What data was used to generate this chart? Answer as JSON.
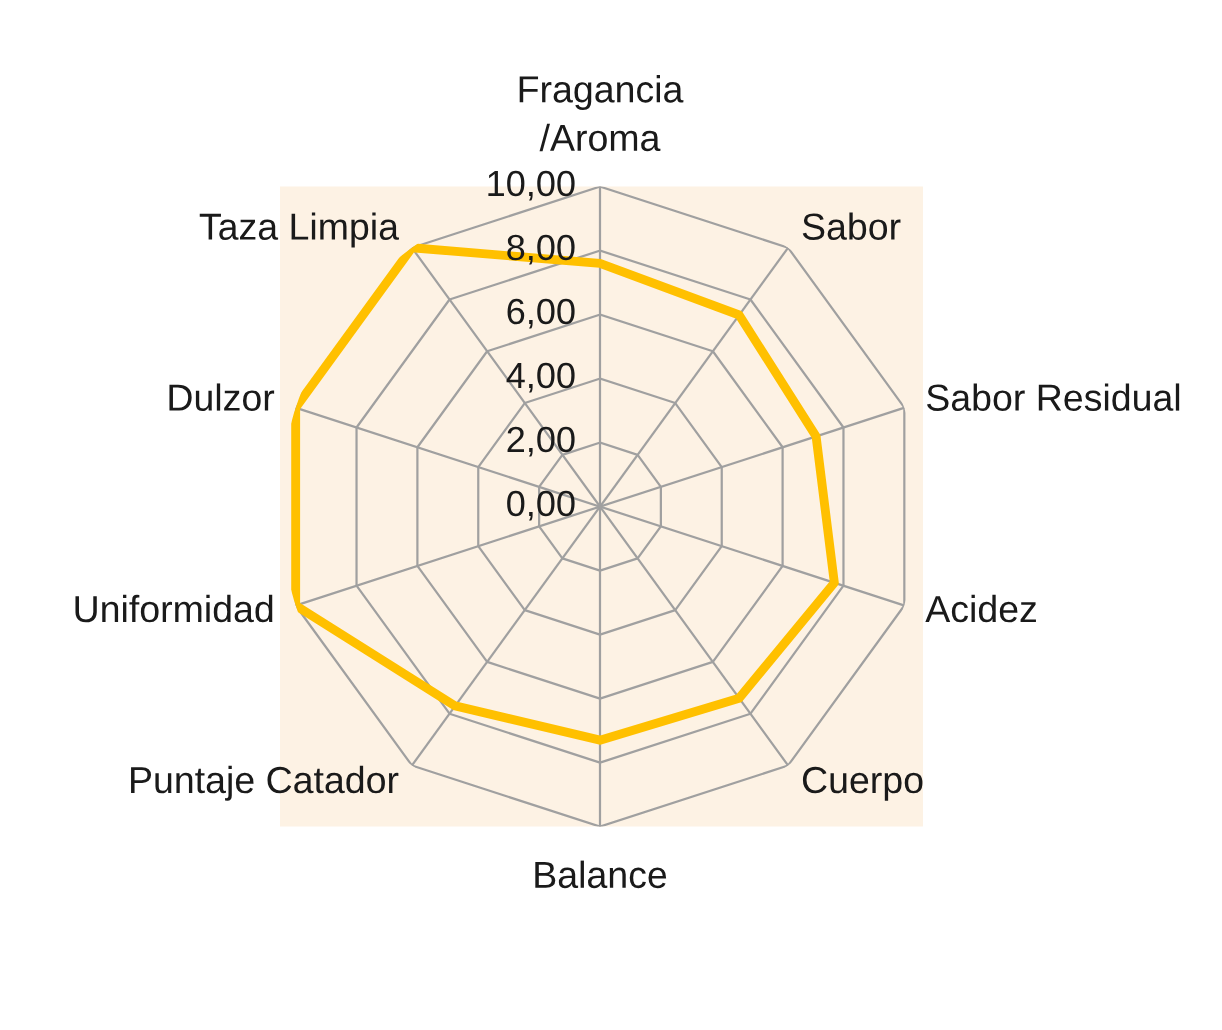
{
  "chart_data": {
    "type": "radar",
    "categories": [
      "Fragancia\n/Aroma",
      "Sabor",
      "Sabor Residual",
      "Acidez",
      "Cuerpo",
      "Balance",
      "Puntaje Catador",
      "Uniformidad",
      "Dulzor",
      "Taza Limpia"
    ],
    "series": [
      {
        "color": "#ffc000",
        "values": [
          7.6,
          7.4,
          7.1,
          7.7,
          7.4,
          7.3,
          7.7,
          10,
          10,
          10
        ]
      }
    ],
    "ylim": [
      0,
      10
    ],
    "yticks": [
      {
        "value": 0,
        "label": "0,00"
      },
      {
        "value": 2,
        "label": "2,00"
      },
      {
        "value": 4,
        "label": "4,00"
      },
      {
        "value": 6,
        "label": "6,00"
      },
      {
        "value": 8,
        "label": "8,00"
      },
      {
        "value": 10,
        "label": "10,00"
      }
    ],
    "grid": true,
    "line_style": "solid"
  }
}
